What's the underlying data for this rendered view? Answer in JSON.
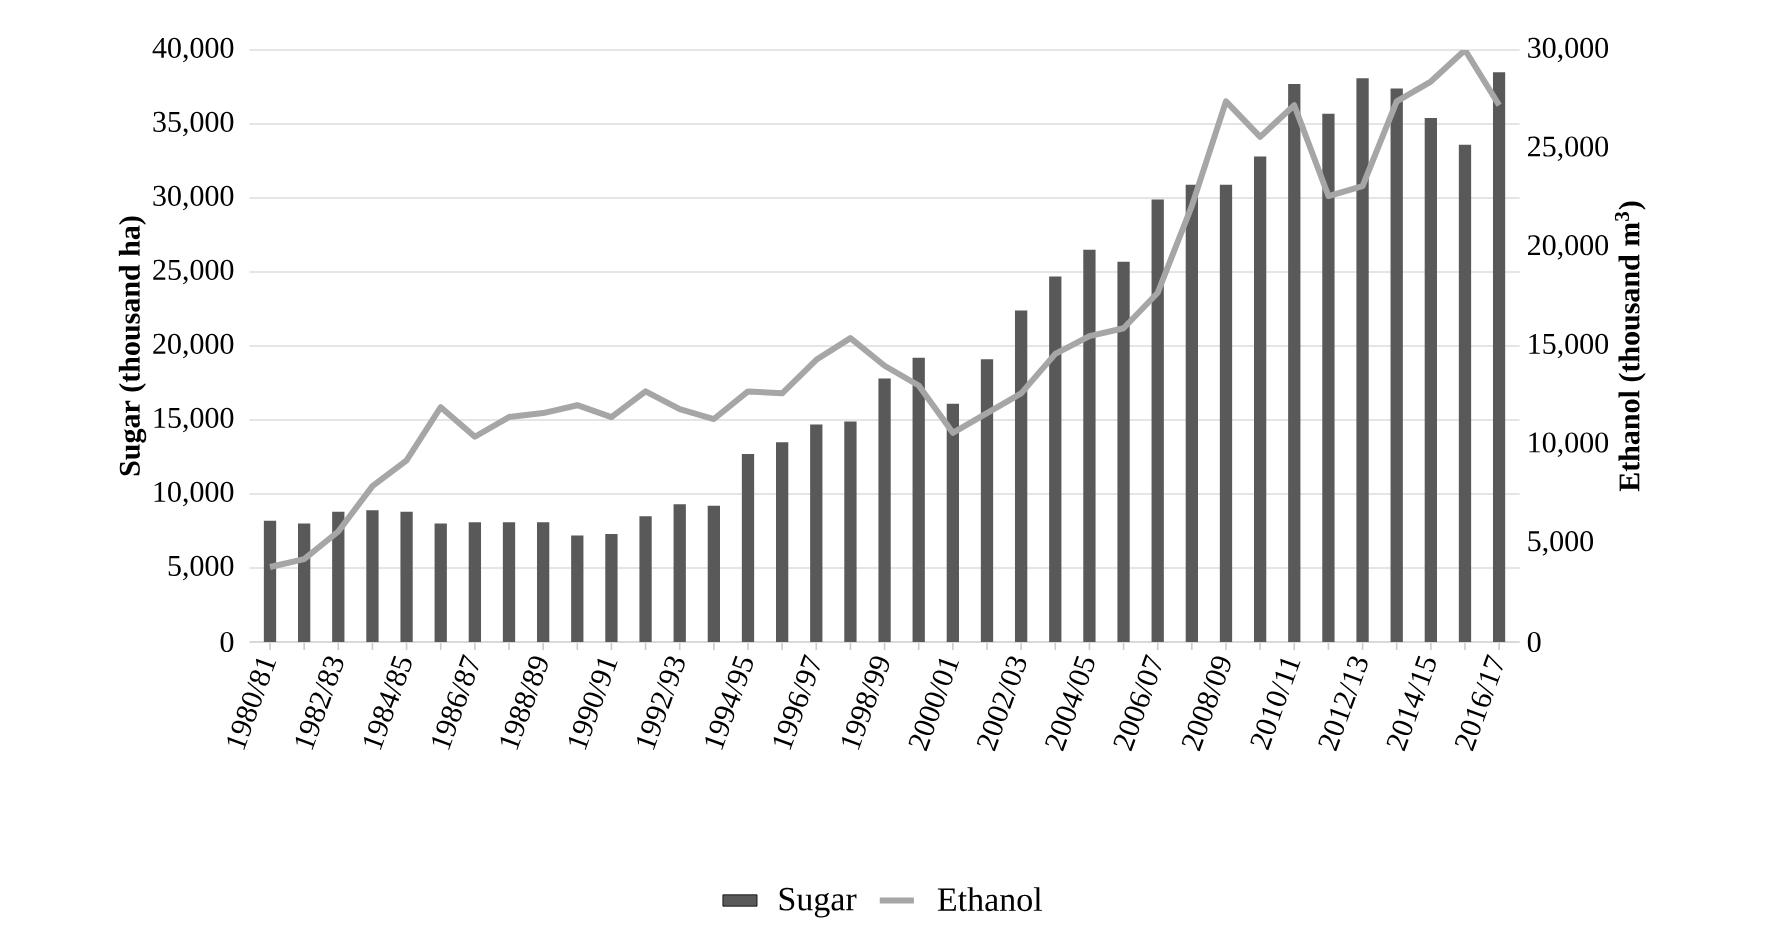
{
  "chart_data": {
    "type": "bar",
    "ylabel": "Sugar (thousand ha)",
    "y2label": "Ethanol (thousand m$^{3}$)",
    "categories": [
      "1980/81",
      null,
      "1982/83",
      null,
      "1984/85",
      null,
      "1986/87",
      null,
      "1988/89",
      null,
      "1990/91",
      null,
      "1992/93",
      null,
      "1994/95",
      null,
      "1996/97",
      null,
      "1998/99",
      null,
      "2000/01",
      null,
      "2002/03",
      null,
      "2004/05",
      null,
      "2006/07",
      null,
      "2008/09",
      null,
      "2010/11",
      null,
      "2012/13",
      null,
      "2014/15",
      null,
      "2016/17"
    ],
    "series": [
      {
        "name": "Sugar",
        "color": "#595959",
        "values": [
          8200,
          8000,
          8800,
          8900,
          8800,
          8000,
          8100,
          8100,
          8100,
          7200,
          7300,
          8500,
          9300,
          9200,
          12700,
          13500,
          14700,
          14900,
          17800,
          19200,
          16100,
          19100,
          22400,
          24700,
          26500,
          25700,
          29900,
          30900,
          30900,
          32800,
          37700,
          35700,
          38100,
          37400,
          35400,
          33600,
          38500
        ]
      },
      {
        "name": "Ethanol",
        "type": "line",
        "axis": "y2",
        "color": "#a6a6a6",
        "values": [
          3800,
          4200,
          5600,
          7900,
          9200,
          11900,
          10400,
          11400,
          11600,
          12000,
          11400,
          12700,
          11800,
          11300,
          12700,
          12600,
          14300,
          15400,
          14000,
          13000,
          10600,
          11600,
          12600,
          14600,
          15500,
          15900,
          17700,
          22100,
          27400,
          25600,
          27200,
          22600,
          23100,
          27400,
          28400,
          30000,
          27200
        ]
      }
    ],
    "ylim": [
      0,
      40000
    ],
    "yticks": [
      0,
      {
        "value": 5000,
        "label": "5,000"
      },
      {
        "value": 10000,
        "label": "10,000"
      },
      {
        "value": 15000,
        "label": "15,000"
      },
      {
        "value": 20000,
        "label": "20,000"
      },
      {
        "value": 25000,
        "label": "25,000"
      },
      {
        "value": 30000,
        "label": "30,000"
      },
      {
        "value": 35000,
        "label": "35,000"
      },
      {
        "value": 40000,
        "label": "40,000"
      }
    ],
    "y2lim": [
      0,
      30000
    ],
    "y2ticks": [
      0,
      {
        "value": 5000,
        "label": "5,000"
      },
      {
        "value": 10000,
        "label": "10,000"
      },
      {
        "value": 15000,
        "label": "15,000"
      },
      {
        "value": 20000,
        "label": "20,000"
      },
      {
        "value": 25000,
        "label": "25,000"
      },
      {
        "value": 30000,
        "label": "30,000"
      }
    ],
    "grid": "y",
    "legend": "bottom"
  }
}
